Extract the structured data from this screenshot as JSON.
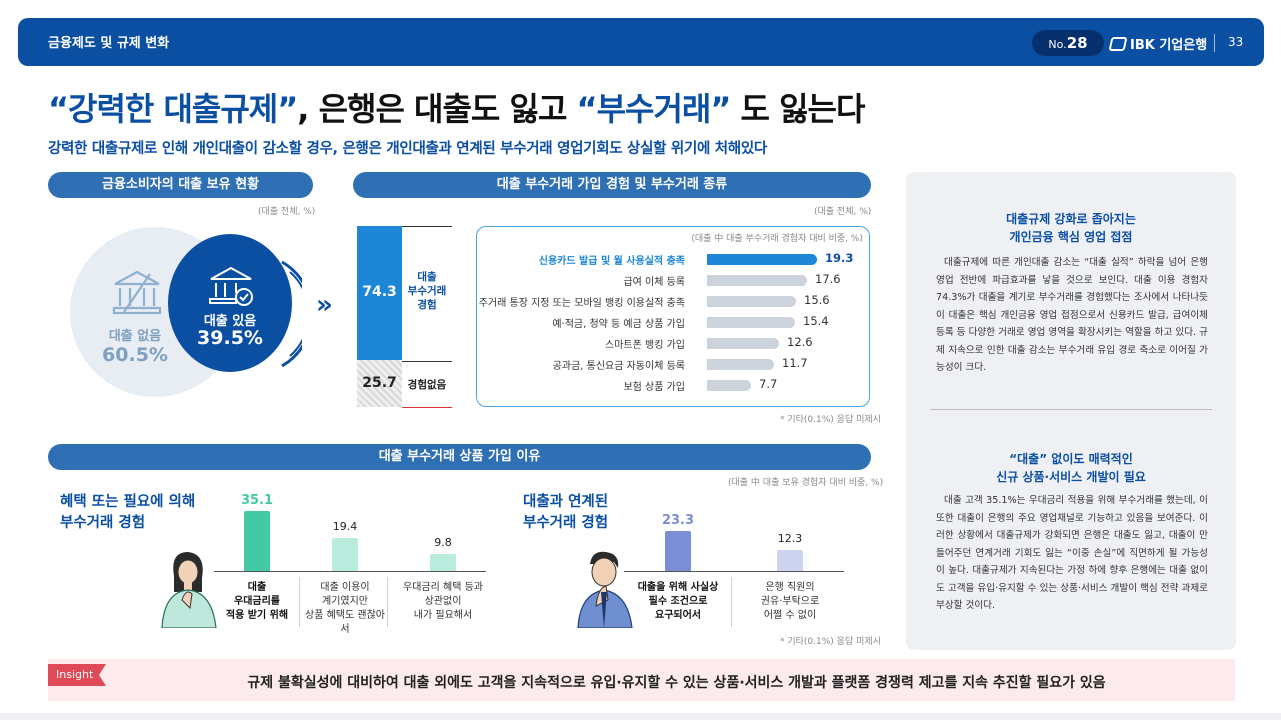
{
  "header": {
    "section": "금융제도 및 규제 변화",
    "issue_prefix": "No.",
    "issue_number": "28",
    "brand": "IBK 기업은행",
    "page": "33"
  },
  "title": {
    "q1": "“강력한 대출규제”",
    "mid": ", 은행은 대출도 잃고 ",
    "q2": "“부수거래”",
    "end": " 도 잃는다"
  },
  "subtitle": "강력한 대출규제로 인해 개인대출이 감소할 경우, 은행은 개인대출과 연계된 부수거래 영업기회도 상실할 위기에 처해있다",
  "panels": {
    "holding_title": "금융소비자의 대출 보유 현황",
    "holding_unit": "(대출 전체, %)",
    "experience_title": "대출 부수거래 가입 경험 및 부수거래 종류",
    "experience_unit": "(대출 전체, %)",
    "reason_title": "대출 부수거래 상품 가입 이유",
    "reason_unit": "(대출 中 대출 보유 경험자 대비 비중, %)"
  },
  "chart_data": [
    {
      "type": "pie",
      "categories": [
        "대출 없음",
        "대출 있음"
      ],
      "values": [
        60.5,
        39.5
      ],
      "labels": [
        "60.5%",
        "39.5%"
      ],
      "colors": [
        "#e7edf2",
        "#0b4fa3"
      ]
    },
    {
      "type": "bar",
      "stacked": true,
      "categories": [
        "대출 부수거래 경험",
        "경험없음"
      ],
      "values": [
        74.3,
        25.7
      ],
      "colors": [
        "#1e86d6",
        "#d8d8d8"
      ]
    },
    {
      "type": "bar",
      "orientation": "horizontal",
      "caption": "(대출 中 대출 부수거래 경험자 대비 비중, %)",
      "categories": [
        "신용카드 발급 및 월 사용실적 충족",
        "급여 이체 등록",
        "주거래 통장 지정 또는 모바일 뱅킹 이용실적 충족",
        "예·적금, 청약 등 예금 상품 가입",
        "스마트폰 뱅킹 가입",
        "공과금, 통신요금 자동이체 등록",
        "보험 상품 가입"
      ],
      "values": [
        19.3,
        17.6,
        15.6,
        15.4,
        12.6,
        11.7,
        7.7
      ],
      "note": "* 기타(0.1%) 응답 미제시"
    },
    {
      "type": "bar",
      "group_title_1": "혜택 또는 필요에 의해",
      "group_title_2": "부수거래 경험",
      "categories": [
        [
          "대출",
          "우대금리를",
          "적용 받기 위해"
        ],
        [
          "대출 이용이",
          "계기였지만",
          "상품 혜택도 괜찮아서"
        ],
        [
          "우대금리 혜택 등과",
          "상관없이",
          "내가 필요해서"
        ]
      ],
      "values": [
        35.1,
        19.4,
        9.8
      ],
      "colors": [
        "#45c9a4",
        "#b9ecdc",
        "#b9ecdc"
      ]
    },
    {
      "type": "bar",
      "group_title_1": "대출과 연계된",
      "group_title_2": "부수거래 경험",
      "categories": [
        [
          "대출을 위해 사실상",
          "필수 조건으로",
          "요구되어서"
        ],
        [
          "은행 직원의",
          "권유·부탁으로",
          "어쩔 수 없이"
        ]
      ],
      "values": [
        23.3,
        12.3
      ],
      "colors": [
        "#7b8fd6",
        "#ccd4f0"
      ],
      "note": "* 기타(0.1%) 응답 미제시"
    }
  ],
  "sidebar": {
    "box1_title_1": "대출규제 강화로 좁아지는",
    "box1_title_2": "개인금융 핵심 영업 접점",
    "box1_text": "대출규제에 따른 개인대출 감소는 “대출 실적” 하락을 넘어 은행 영업 전반에 파급효과를 낳을 것으로 보인다. 대출 이용 경험자 74.3%가 대출을 계기로 부수거래를 경험했다는 조사에서 나타나듯이 대출은 핵심 개인금융 영업 접점으로서 신용카드 발급, 급여이체 등록 등 다양한 거래로 영업 영역을 확장시키는 역할을 하고 있다. 규제 지속으로 인한 대출 감소는 부수거래 유입 경로 축소로 이어질 가능성이 크다.",
    "box2_title_1": "“대출” 없이도 매력적인",
    "box2_title_2": "신규 상품·서비스 개발이 필요",
    "box2_text": "대출 고객 35.1%는 우대금리 적용을 위해 부수거래를 했는데, 이 또한 대출이 은행의 주요 영업채널로 기능하고 있음을 보여준다. 이러한 상황에서 대출규제가 강화되면 은행은 대출도 잃고, 대출이 만들어주던 연계거래 기회도 잃는 “이중 손실”에 직면하게 될 가능성이 높다. 대출규제가 지속된다는 가정 하에 향후 은행에는 대출 없이도 고객을 유입·유지할 수 있는 상품·서비스 개발이 핵심 전략 과제로 부상할 것이다."
  },
  "insight": {
    "tag": "Insight",
    "text": "규제 불확실성에 대비하여 대출 외에도 고객을 지속적으로 유입·유지할 수 있는 상품·서비스 개발과 플랫폼 경쟁력 제고를 지속 추진할 필요가 있음"
  },
  "icons": [
    "bank-icon",
    "bank-check-icon",
    "double-chevron-icon",
    "woman-illustration",
    "man-illustration"
  ]
}
